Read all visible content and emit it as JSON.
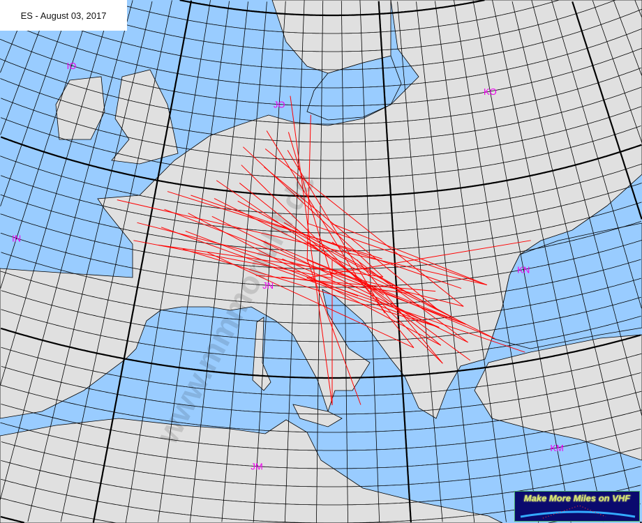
{
  "title": "ES - August 03, 2017",
  "watermark": "www.mmmonvhf.de",
  "logo": {
    "text": "Make More Miles on VHF"
  },
  "colors": {
    "sea": "#99ccff",
    "land": "#e0e0e0",
    "grid": "#000000",
    "path": "#ff0000",
    "field_label": "#ee00ee"
  },
  "fields": [
    "IO",
    "JO",
    "KO",
    "IN",
    "JN",
    "KN",
    "JM",
    "KM"
  ],
  "paths": [
    [
      "IN88",
      "KN34"
    ],
    [
      "IN97",
      "KN23"
    ],
    [
      "IN96",
      "JN75"
    ],
    [
      "JN08",
      "KN22"
    ],
    [
      "JN07",
      "KN12"
    ],
    [
      "JN09",
      "JN96"
    ],
    [
      "JN19",
      "KN24"
    ],
    [
      "JN18",
      "KN11"
    ],
    [
      "JN17",
      "JN84"
    ],
    [
      "JN06",
      "JN95"
    ],
    [
      "JN16",
      "KN12"
    ],
    [
      "JN26",
      "KN01"
    ],
    [
      "JN28",
      "KN21"
    ],
    [
      "JN29",
      "KN31"
    ],
    [
      "JO20",
      "JN94"
    ],
    [
      "JN39",
      "KN22"
    ],
    [
      "JO30",
      "KN11"
    ],
    [
      "JO31",
      "KN10"
    ],
    [
      "JO32",
      "JN95"
    ],
    [
      "JO42",
      "KN23"
    ],
    [
      "JO41",
      "KN13"
    ],
    [
      "JO43",
      "JN85"
    ],
    [
      "JO52",
      "JN93"
    ],
    [
      "JO53",
      "JN75"
    ],
    [
      "JO55",
      "JM78"
    ],
    [
      "JO64",
      "JN66"
    ],
    [
      "JN45",
      "KN14"
    ],
    [
      "JN55",
      "KN04"
    ],
    [
      "JN65",
      "KN40"
    ],
    [
      "JN66",
      "KN31"
    ],
    [
      "JN67",
      "KN20"
    ],
    [
      "JN75",
      "JM78"
    ],
    [
      "JN76",
      "JM79"
    ],
    [
      "JN66",
      "JM88"
    ],
    [
      "JN65",
      "KN56"
    ],
    [
      "JN68",
      "KN34"
    ],
    [
      "JN78",
      "KN34"
    ],
    [
      "JN86",
      "KN10"
    ],
    [
      "JN77",
      "KN21"
    ],
    [
      "JN85",
      "KN01"
    ],
    [
      "JN56",
      "KN12"
    ],
    [
      "JN47",
      "KN22"
    ],
    [
      "JN58",
      "KN13"
    ]
  ]
}
